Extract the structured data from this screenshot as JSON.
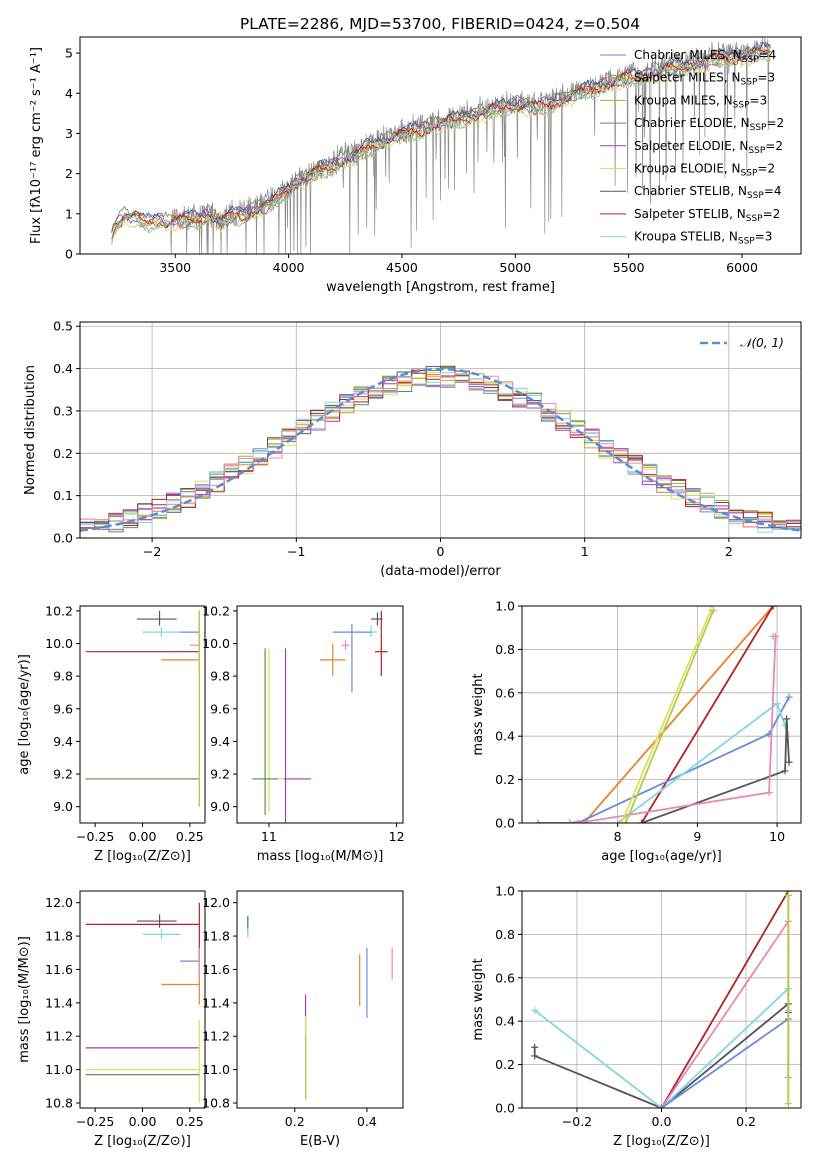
{
  "colors": {
    "Chabrier MILES": "#6a8bd9",
    "Salpeter MILES": "#e8822c",
    "Kroupa MILES": "#c9a227",
    "Chabrier ELODIE": "#5c8f5c",
    "Salpeter ELODIE": "#a23fb0",
    "Kroupa ELODIE": "#d9e05a",
    "Chabrier STELIB": "#555555",
    "Salpeter STELIB": "#b22222",
    "Kroupa STELIB": "#7fd8e0",
    "pink": "#e68ab8",
    "olive": "#b8c94a",
    "gaussian": "#5b8bd9"
  },
  "chart_data": [
    {
      "id": "spectrum",
      "type": "line",
      "title": "PLATE=2286, MJD=53700, FIBERID=0424, z=0.504",
      "xlabel": "wavelength [Angstrom, rest frame]",
      "ylabel": "Flux [fλ10⁻¹⁷ erg cm⁻² s⁻¹ A⁻¹]",
      "xlim": [
        3080,
        6260
      ],
      "ylim": [
        0,
        5.4
      ],
      "xticks": [
        3500,
        4000,
        4500,
        5000,
        5500,
        6000
      ],
      "yticks": [
        0,
        1,
        2,
        3,
        4,
        5
      ],
      "grid": false,
      "legend_position": "top-right",
      "legend": [
        {
          "name": "Chabrier MILES, N_SSP=4",
          "base": "Chabrier MILES, N",
          "sub": "SSP",
          "tail": "=4",
          "color": "#6a8bd9"
        },
        {
          "name": "Salpeter MILES, N_SSP=3",
          "base": "Salpeter MILES, N",
          "sub": "SSP",
          "tail": "=3",
          "color": "#e8822c"
        },
        {
          "name": "Kroupa MILES, N_SSP=3",
          "base": "Kroupa MILES, N",
          "sub": "SSP",
          "tail": "=3",
          "color": "#c9a227"
        },
        {
          "name": "Chabrier ELODIE, N_SSP=2",
          "base": "Chabrier ELODIE, N",
          "sub": "SSP",
          "tail": "=2",
          "color": "#5c8f5c"
        },
        {
          "name": "Salpeter ELODIE, N_SSP=2",
          "base": "Salpeter ELODIE, N",
          "sub": "SSP",
          "tail": "=2",
          "color": "#a23fb0"
        },
        {
          "name": "Kroupa ELODIE, N_SSP=2",
          "base": "Kroupa ELODIE, N",
          "sub": "SSP",
          "tail": "=2",
          "color": "#d9e05a"
        },
        {
          "name": "Chabrier STELIB, N_SSP=4",
          "base": "Chabrier STELIB, N",
          "sub": "SSP",
          "tail": "=4",
          "color": "#555555"
        },
        {
          "name": "Salpeter STELIB, N_SSP=2",
          "base": "Salpeter STELIB, N",
          "sub": "SSP",
          "tail": "=2",
          "color": "#b22222"
        },
        {
          "name": "Kroupa STELIB, N_SSP=3",
          "base": "Kroupa STELIB, N",
          "sub": "SSP",
          "tail": "=3",
          "color": "#7fd8e0"
        }
      ],
      "continuum": {
        "x": [
          3220,
          3240,
          3260,
          3280,
          3300,
          3320,
          3350,
          3380,
          3420,
          3460,
          3500,
          3550,
          3600,
          3650,
          3700,
          3750,
          3800,
          3850,
          3900,
          3950,
          4000,
          4100,
          4200,
          4300,
          4400,
          4500,
          4600,
          4700,
          4800,
          4900,
          5000,
          5100,
          5200,
          5300,
          5400,
          5500,
          5600,
          5700,
          5800,
          5900,
          6000,
          6100,
          6150
        ],
        "y": [
          0.55,
          0.85,
          0.9,
          1.05,
          0.95,
          1.0,
          0.9,
          0.85,
          0.95,
          0.85,
          0.9,
          0.9,
          0.95,
          1.05,
          0.85,
          1.0,
          1.05,
          1.15,
          1.25,
          1.45,
          1.7,
          2.05,
          2.3,
          2.55,
          2.85,
          3.05,
          3.2,
          3.35,
          3.5,
          3.65,
          3.8,
          3.7,
          3.9,
          4.1,
          4.3,
          4.45,
          4.55,
          4.7,
          4.8,
          4.95,
          5.0,
          5.1,
          5.2
        ]
      },
      "observed_noise_amplitude": 0.35,
      "observed_xrange": [
        3480,
        6120
      ]
    },
    {
      "id": "residuals",
      "type": "histogram",
      "xlabel": "(data-model)/error",
      "ylabel": "Normed distribution",
      "xlim": [
        -2.5,
        2.5
      ],
      "ylim": [
        0,
        0.51
      ],
      "xticks": [
        -2,
        -1,
        0,
        1,
        2
      ],
      "yticks": [
        0.0,
        0.1,
        0.2,
        0.3,
        0.4,
        0.5
      ],
      "grid": true,
      "legend_position": "top-right",
      "legend": [
        {
          "name": "N(0,1)",
          "label": "𝒩(0, 1)",
          "color": "#5b8bd9"
        }
      ],
      "bin_width": 0.1,
      "bin_start": -2.5
    },
    {
      "id": "age_vs_Z",
      "type": "errorbar",
      "xlabel": "Z [log₁₀(Z/Z⊙)]",
      "ylabel": "age  [log₁₀(age/yr)]",
      "xlim": [
        -0.33,
        0.33
      ],
      "ylim": [
        8.9,
        10.23
      ],
      "xticks": [
        -0.25,
        0.0,
        0.25
      ],
      "xticklabels": [
        "−0.25",
        "0.00",
        "0.25"
      ],
      "yticks": [
        9.0,
        9.2,
        9.4,
        9.6,
        9.8,
        10.0,
        10.2
      ],
      "grid": false,
      "points": [
        {
          "x": 0.09,
          "y": 10.15,
          "xerr": [
            0.12,
            0.09
          ],
          "yerr": [
            0.04,
            0.05
          ],
          "color": "#555555"
        },
        {
          "x": 0.1,
          "y": 10.07,
          "xerr": [
            0.1,
            0.1
          ],
          "yerr": [
            0.03,
            0.03
          ],
          "color": "#7fd8e0"
        },
        {
          "x": 0.28,
          "y": 10.07,
          "xerr": [
            0.08,
            0.02
          ],
          "yerr": [
            0.0,
            0.0
          ],
          "color": "#6a8bd9"
        },
        {
          "x": 0.3,
          "y": 9.95,
          "xerr": [
            0.6,
            0.0
          ],
          "yerr": [
            0.1,
            0.25
          ],
          "color": "#b22222"
        },
        {
          "x": 0.3,
          "y": 9.9,
          "xerr": [
            0.2,
            0.0
          ],
          "yerr": [
            0.0,
            0.0
          ],
          "color": "#e8822c"
        },
        {
          "x": 0.3,
          "y": 9.99,
          "xerr": [
            0.05,
            0.0
          ],
          "yerr": [
            0.0,
            0.0
          ],
          "color": "#e68ab8"
        },
        {
          "x": 0.3,
          "y": 9.17,
          "xerr": [
            0.6,
            0.0
          ],
          "yerr": [
            0.0,
            0.0
          ],
          "color": "#d9e05a"
        },
        {
          "x": 0.3,
          "y": 9.17,
          "xerr": [
            0.6,
            0.0
          ],
          "yerr": [
            0.0,
            0.0
          ],
          "color": "#5c8f5c"
        },
        {
          "x": 0.3,
          "y": 9.6,
          "xerr": [
            0.0,
            0.0
          ],
          "yerr": [
            0.6,
            0.6
          ],
          "color": "#d9e05a"
        },
        {
          "x": 0.3,
          "y": 9.6,
          "xerr": [
            0.0,
            0.0
          ],
          "yerr": [
            0.6,
            0.6
          ],
          "color": "#b8c94a"
        }
      ]
    },
    {
      "id": "age_vs_mass",
      "type": "errorbar",
      "xlabel": "mass [log₁₀(M/M⊙)]",
      "ylabel": "",
      "xlim": [
        10.75,
        12.05
      ],
      "ylim": [
        8.9,
        10.23
      ],
      "xticks": [
        11,
        12
      ],
      "yticks": [
        9.0,
        9.2,
        9.4,
        9.6,
        9.8,
        10.0,
        10.2
      ],
      "grid": false,
      "points": [
        {
          "x": 11.85,
          "y": 10.15,
          "xerr": [
            0.05,
            0.04
          ],
          "yerr": [
            0.04,
            0.04
          ],
          "color": "#555555"
        },
        {
          "x": 11.8,
          "y": 10.07,
          "xerr": [
            0.05,
            0.05
          ],
          "yerr": [
            0.03,
            0.04
          ],
          "color": "#7fd8e0"
        },
        {
          "x": 11.65,
          "y": 10.07,
          "xerr": [
            0.15,
            0.15
          ],
          "yerr": [
            0.37,
            0.05
          ],
          "color": "#6a8bd9"
        },
        {
          "x": 11.5,
          "y": 9.9,
          "xerr": [
            0.1,
            0.1
          ],
          "yerr": [
            0.1,
            0.1
          ],
          "color": "#e8822c"
        },
        {
          "x": 11.88,
          "y": 9.95,
          "xerr": [
            0.05,
            0.05
          ],
          "yerr": [
            0.15,
            0.25
          ],
          "color": "#b22222"
        },
        {
          "x": 11.6,
          "y": 9.99,
          "xerr": [
            0.03,
            0.03
          ],
          "yerr": [
            0.03,
            0.03
          ],
          "color": "#e68ab8"
        },
        {
          "x": 11.13,
          "y": 9.17,
          "xerr": [
            0.2,
            0.2
          ],
          "yerr": [
            0.8,
            0.8
          ],
          "color": "#a23fb0"
        },
        {
          "x": 11.0,
          "y": 9.17,
          "xerr": [
            0.12,
            0.12
          ],
          "yerr": [
            0.2,
            0.8
          ],
          "color": "#d9e05a"
        },
        {
          "x": 10.97,
          "y": 9.17,
          "xerr": [
            0.1,
            0.1
          ],
          "yerr": [
            0.22,
            0.8
          ],
          "color": "#5c8f5c"
        }
      ]
    },
    {
      "id": "mass_weight_vs_age",
      "type": "line",
      "xlabel": "age  [log₁₀(age/yr)]",
      "ylabel": "mass weight",
      "xlim": [
        6.8,
        10.3
      ],
      "ylim": [
        0,
        1
      ],
      "xticks": [
        8,
        9,
        10
      ],
      "yticks": [
        0.0,
        0.2,
        0.4,
        0.6,
        0.8,
        1.0
      ],
      "grid": true,
      "series": [
        {
          "color": "#e8822c",
          "x": [
            7.4,
            7.6,
            9.95
          ],
          "y": [
            0.0,
            0.01,
            1.0
          ]
        },
        {
          "color": "#b22222",
          "x": [
            8.3,
            9.95
          ],
          "y": [
            0.0,
            1.0
          ]
        },
        {
          "color": "#6a8bd9",
          "x": [
            7.0,
            7.5,
            9.9,
            10.15
          ],
          "y": [
            0.0,
            0.0,
            0.41,
            0.58
          ]
        },
        {
          "color": "#7fd8e0",
          "x": [
            8.0,
            10.0,
            10.1
          ],
          "y": [
            0.0,
            0.55,
            0.45
          ]
        },
        {
          "color": "#555555",
          "x": [
            8.3,
            10.1,
            10.12,
            10.15
          ],
          "y": [
            0.0,
            0.24,
            0.48,
            0.28
          ]
        },
        {
          "color": "#e68ab8",
          "x": [
            7.5,
            9.9,
            9.98,
            9.95
          ],
          "y": [
            0.0,
            0.14,
            0.86,
            0.86
          ]
        },
        {
          "color": "#d9e05a",
          "x": [
            8.05,
            9.17
          ],
          "y": [
            0.0,
            0.98
          ]
        },
        {
          "color": "#b8c94a",
          "x": [
            8.1,
            9.2
          ],
          "y": [
            0.0,
            0.98
          ]
        }
      ]
    },
    {
      "id": "mass_vs_Z",
      "type": "errorbar",
      "xlabel": "Z [log₁₀(Z/Z⊙)]",
      "ylabel": "mass [log₁₀(M/M⊙)]",
      "xlim": [
        -0.33,
        0.33
      ],
      "ylim": [
        10.77,
        12.07
      ],
      "xticks": [
        -0.25,
        0.0,
        0.25
      ],
      "xticklabels": [
        "−0.25",
        "0.00",
        "0.25"
      ],
      "yticks": [
        10.8,
        11.0,
        11.2,
        11.4,
        11.6,
        11.8,
        12.0
      ],
      "grid": false,
      "points": [
        {
          "x": 0.09,
          "y": 11.89,
          "xerr": [
            0.12,
            0.09
          ],
          "yerr": [
            0.04,
            0.04
          ],
          "color": "#555555"
        },
        {
          "x": 0.1,
          "y": 11.81,
          "xerr": [
            0.1,
            0.1
          ],
          "yerr": [
            0.03,
            0.03
          ],
          "color": "#7fd8e0"
        },
        {
          "x": 0.3,
          "y": 11.87,
          "xerr": [
            0.6,
            0.0
          ],
          "yerr": [
            0.2,
            0.13
          ],
          "color": "#b22222"
        },
        {
          "x": 0.3,
          "y": 11.65,
          "xerr": [
            0.1,
            0.0
          ],
          "yerr": [
            0.08,
            0.08
          ],
          "color": "#6a8bd9"
        },
        {
          "x": 0.3,
          "y": 11.51,
          "xerr": [
            0.2,
            0.0
          ],
          "yerr": [
            0.12,
            0.15
          ],
          "color": "#e8822c"
        },
        {
          "x": 0.3,
          "y": 11.6,
          "xerr": [
            0.0,
            0.0
          ],
          "yerr": [
            0.05,
            0.13
          ],
          "color": "#e68ab8"
        },
        {
          "x": 0.3,
          "y": 11.13,
          "xerr": [
            0.6,
            0.0
          ],
          "yerr": [
            0.0,
            0.0
          ],
          "color": "#a23fb0"
        },
        {
          "x": 0.3,
          "y": 11.0,
          "xerr": [
            0.6,
            0.0
          ],
          "yerr": [
            0.2,
            0.3
          ],
          "color": "#d9e05a"
        },
        {
          "x": 0.3,
          "y": 10.97,
          "xerr": [
            0.6,
            0.0
          ],
          "yerr": [
            0.0,
            0.0
          ],
          "color": "#5c8f5c"
        }
      ]
    },
    {
      "id": "mass_vs_EBV",
      "type": "errorbar",
      "xlabel": "E(B-V)",
      "ylabel": "",
      "xlim": [
        0.04,
        0.5
      ],
      "ylim": [
        10.77,
        12.07
      ],
      "xticks": [
        0.2,
        0.4
      ],
      "yticks": [
        10.8,
        11.0,
        11.2,
        11.4,
        11.6,
        11.8,
        12.0
      ],
      "grid": false,
      "points": [
        {
          "x": 0.07,
          "y": 11.87,
          "xerr": [
            0,
            0
          ],
          "yerr": [
            0.05,
            0.05
          ],
          "color": "#555555"
        },
        {
          "x": 0.07,
          "y": 11.84,
          "xerr": [
            0,
            0
          ],
          "yerr": [
            0.05,
            0.05
          ],
          "color": "#7fd8e0"
        },
        {
          "x": 0.07,
          "y": 11.88,
          "xerr": [
            0,
            0
          ],
          "yerr": [
            0.03,
            0.03
          ],
          "color": "#5c8f5c"
        },
        {
          "x": 0.23,
          "y": 11.13,
          "xerr": [
            0,
            0
          ],
          "yerr": [
            0.3,
            0.32
          ],
          "color": "#a23fb0"
        },
        {
          "x": 0.23,
          "y": 11.0,
          "xerr": [
            0,
            0
          ],
          "yerr": [
            0.18,
            0.32
          ],
          "color": "#d9e05a"
        },
        {
          "x": 0.23,
          "y": 11.0,
          "xerr": [
            0,
            0
          ],
          "yerr": [
            0.18,
            0.2
          ],
          "color": "#b8c94a"
        },
        {
          "x": 0.38,
          "y": 11.51,
          "xerr": [
            0,
            0
          ],
          "yerr": [
            0.13,
            0.18
          ],
          "color": "#e8822c"
        },
        {
          "x": 0.4,
          "y": 11.51,
          "xerr": [
            0,
            0
          ],
          "yerr": [
            0.2,
            0.22
          ],
          "color": "#6a8bd9"
        },
        {
          "x": 0.47,
          "y": 11.63,
          "xerr": [
            0,
            0
          ],
          "yerr": [
            0.09,
            0.1
          ],
          "color": "#e68ab8"
        }
      ]
    },
    {
      "id": "mass_weight_vs_Z",
      "type": "line",
      "xlabel": "Z [log₁₀(Z/Z⊙)]",
      "ylabel": "mass weight",
      "xlim": [
        -0.33,
        0.33
      ],
      "ylim": [
        0,
        1
      ],
      "xticks": [
        -0.2,
        0.0,
        0.2
      ],
      "xticklabels": [
        "−0.2",
        "0.0",
        "0.2"
      ],
      "yticks": [
        0.0,
        0.2,
        0.4,
        0.6,
        0.8,
        1.0
      ],
      "grid": true,
      "series": [
        {
          "color": "#555555",
          "x": [
            -0.3,
            -0.3,
            0.0,
            0.3,
            0.3
          ],
          "y": [
            0.28,
            0.24,
            0.0,
            0.48,
            0.44
          ]
        },
        {
          "color": "#7fd8e0",
          "x": [
            -0.3,
            0.0,
            0.3,
            0.3
          ],
          "y": [
            0.45,
            0.0,
            0.55,
            0.45
          ]
        },
        {
          "color": "#b22222",
          "x": [
            0.0,
            0.3
          ],
          "y": [
            0.0,
            1.0
          ]
        },
        {
          "color": "#e68ab8",
          "x": [
            0.0,
            0.3,
            0.3
          ],
          "y": [
            0.0,
            0.86,
            0.14
          ]
        },
        {
          "color": "#6a8bd9",
          "x": [
            0.0,
            0.3
          ],
          "y": [
            0.0,
            0.41
          ]
        },
        {
          "color": "#d9e05a",
          "x": [
            0.3,
            0.3
          ],
          "y": [
            0.02,
            0.98
          ]
        },
        {
          "color": "#b8c94a",
          "x": [
            0.3,
            0.3
          ],
          "y": [
            0.02,
            0.98
          ]
        }
      ]
    }
  ]
}
